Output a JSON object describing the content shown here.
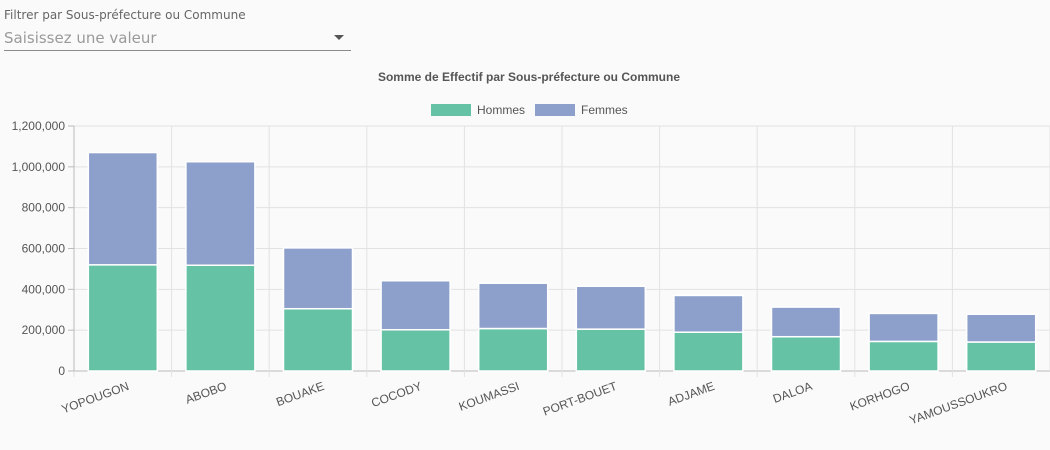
{
  "filter": {
    "label": "Filtrer par Sous-préfecture ou Commune",
    "placeholder": "Saisissez une valeur"
  },
  "chart_data": {
    "type": "bar",
    "stacked": true,
    "title": "Somme de Effectif par Sous-préfecture ou Commune",
    "xlabel": "",
    "ylabel": "",
    "ylim": [
      0,
      1200000
    ],
    "y_ticks": [
      0,
      200000,
      400000,
      600000,
      800000,
      1000000,
      1200000
    ],
    "y_tick_labels": [
      "0",
      "200,000",
      "400,000",
      "600,000",
      "800,000",
      "1,000,000",
      "1,200,000"
    ],
    "grid": true,
    "legend_position": "top-center",
    "categories": [
      "YOPOUGON",
      "ABOBO",
      "BOUAKE",
      "COCODY",
      "KOUMASSI",
      "PORT-BOUET",
      "ADJAME",
      "DALOA",
      "KORHOGO",
      "YAMOUSSOUKRO"
    ],
    "series": [
      {
        "name": "Hommes",
        "color": "#66c2a5",
        "values": [
          520000,
          518000,
          305000,
          202000,
          208000,
          205000,
          190000,
          168000,
          145000,
          142000
        ]
      },
      {
        "name": "Femmes",
        "color": "#8da0cb",
        "values": [
          550000,
          507000,
          298000,
          240000,
          222000,
          210000,
          180000,
          145000,
          137000,
          136000
        ]
      }
    ]
  }
}
